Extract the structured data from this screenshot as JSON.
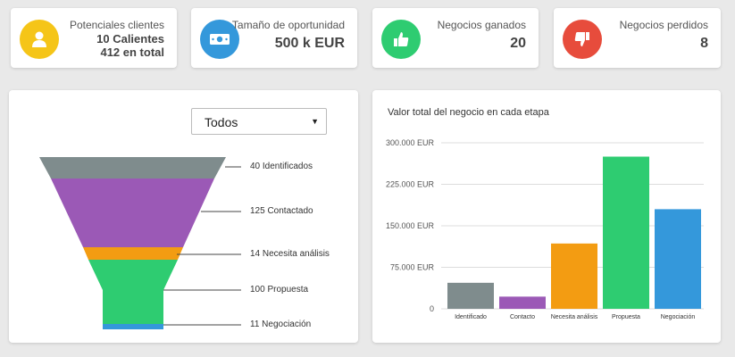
{
  "kpis": [
    {
      "label": "Potenciales clientes",
      "value_line1": "10 Calientes",
      "value_line2": "412 en total",
      "color": "#f5c518",
      "icon": "user-icon"
    },
    {
      "label": "Tamaño de oportunidad",
      "value": "500 k EUR",
      "color": "#3498db",
      "icon": "banknote-icon"
    },
    {
      "label": "Negocios ganados",
      "value": "20",
      "color": "#2ecc71",
      "icon": "thumbs-up-icon"
    },
    {
      "label": "Negocios perdidos",
      "value": "8",
      "color": "#e74c3c",
      "icon": "thumbs-down-icon"
    }
  ],
  "funnel": {
    "filter": {
      "selected": "Todos"
    },
    "stages": [
      {
        "label": "40 Identificados",
        "count": 40,
        "name": "Identificados",
        "color": "#7f8c8d"
      },
      {
        "label": "125 Contactado",
        "count": 125,
        "name": "Contactado",
        "color": "#9b59b6"
      },
      {
        "label": "14 Necesita análisis",
        "count": 14,
        "name": "Necesita análisis",
        "color": "#f39c12"
      },
      {
        "label": "100 Propuesta",
        "count": 100,
        "name": "Propuesta",
        "color": "#2ecc71"
      },
      {
        "label": "11 Negociación",
        "count": 11,
        "name": "Negociación",
        "color": "#3498db"
      }
    ]
  },
  "chart_data": {
    "type": "bar",
    "title": "Valor total del negocio en cada etapa",
    "categories": [
      "Identificado",
      "Contacto",
      "Necesita análisis",
      "Propuesta",
      "Negociación"
    ],
    "values": [
      47000,
      22000,
      118000,
      275000,
      180000
    ],
    "colors": [
      "#7f8c8d",
      "#9b59b6",
      "#f39c12",
      "#2ecc71",
      "#3498db"
    ],
    "ylim": [
      0,
      300000
    ],
    "yticks": [
      0,
      75000,
      150000,
      225000,
      300000
    ],
    "ytick_labels": [
      "0",
      "75.000 EUR",
      "150.000 EUR",
      "225.000 EUR",
      "300.000 EUR"
    ],
    "grid": true
  }
}
